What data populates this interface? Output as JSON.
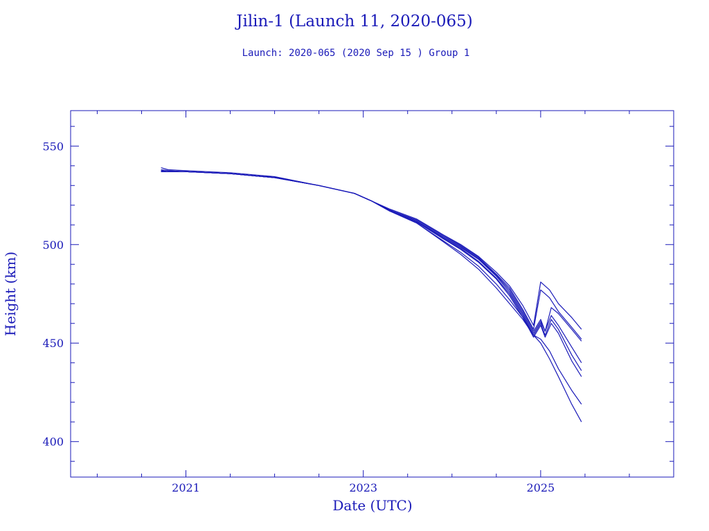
{
  "chart_data": {
    "type": "line",
    "title": "Jilin-1 (Launch 11, 2020-065)",
    "subtitle": "Launch: 2020-065  (2020 Sep 15 )  Group 1",
    "xlabel": "Date (UTC)",
    "ylabel": "Height (km)",
    "xlim": [
      2019.7,
      2026.5
    ],
    "ylim": [
      382,
      568
    ],
    "x_ticks": [
      2021,
      2023,
      2025
    ],
    "x_tick_labels": [
      "2021",
      "2023",
      "2025"
    ],
    "y_ticks": [
      400,
      450,
      500,
      550
    ],
    "y_tick_labels": [
      "400",
      "450",
      "500",
      "550"
    ],
    "grid": false,
    "color": "#1a1ab8",
    "series": [
      {
        "x": [
          2020.72,
          2020.8,
          2021.0,
          2021.5,
          2022.0,
          2022.5,
          2022.9,
          2023.1,
          2023.3,
          2023.6,
          2023.9,
          2024.1,
          2024.3,
          2024.5,
          2024.65,
          2024.8,
          2024.92,
          2025.0,
          2025.1,
          2025.2,
          2025.35,
          2025.46
        ],
        "values": [
          539,
          538,
          537.5,
          536.5,
          534.5,
          530,
          526,
          522,
          518,
          513,
          505,
          500,
          494,
          486,
          479,
          469,
          459,
          481,
          477,
          470,
          463,
          457
        ]
      },
      {
        "x": [
          2020.72,
          2020.8,
          2021.0,
          2021.5,
          2022.0,
          2022.5,
          2022.9,
          2023.1,
          2023.3,
          2023.6,
          2023.9,
          2024.1,
          2024.3,
          2024.5,
          2024.65,
          2024.8,
          2024.92,
          2025.0,
          2025.1,
          2025.2,
          2025.35,
          2025.46
        ],
        "values": [
          538,
          537.5,
          537,
          536,
          534,
          530,
          526,
          522,
          517.5,
          512.5,
          504.5,
          499.5,
          493.5,
          485,
          478,
          467,
          457,
          477,
          473,
          466,
          458,
          452
        ]
      },
      {
        "x": [
          2020.72,
          2020.8,
          2021.0,
          2021.5,
          2022.0,
          2022.5,
          2022.9,
          2023.1,
          2023.3,
          2023.6,
          2023.9,
          2024.1,
          2024.3,
          2024.5,
          2024.65,
          2024.8,
          2024.92,
          2025.0,
          2025.05,
          2025.12,
          2025.2,
          2025.35,
          2025.46
        ],
        "values": [
          537.5,
          537,
          537,
          536,
          534,
          530,
          526,
          522,
          517.5,
          512,
          504,
          499,
          493,
          484.5,
          477,
          466,
          456,
          462,
          456,
          468,
          465,
          457,
          451
        ]
      },
      {
        "x": [
          2020.72,
          2020.8,
          2021.0,
          2021.5,
          2022.0,
          2022.5,
          2022.9,
          2023.1,
          2023.3,
          2023.6,
          2023.9,
          2024.1,
          2024.3,
          2024.5,
          2024.65,
          2024.8,
          2024.92,
          2025.0,
          2025.05,
          2025.12,
          2025.2,
          2025.35,
          2025.46
        ],
        "values": [
          537.5,
          537,
          537,
          536,
          534,
          530,
          526,
          522,
          517.5,
          512,
          503.5,
          498.5,
          492.5,
          484,
          476,
          465,
          455,
          461,
          456,
          464,
          459,
          448,
          440
        ]
      },
      {
        "x": [
          2020.72,
          2020.8,
          2021.0,
          2021.5,
          2022.0,
          2022.5,
          2022.9,
          2023.1,
          2023.3,
          2023.6,
          2023.9,
          2024.1,
          2024.3,
          2024.5,
          2024.65,
          2024.8,
          2024.92,
          2025.0,
          2025.05,
          2025.12,
          2025.2,
          2025.35,
          2025.46
        ],
        "values": [
          537,
          537,
          537,
          536,
          534,
          530,
          526,
          522,
          517,
          511.5,
          503,
          498,
          491.5,
          483,
          475,
          464,
          454,
          460,
          454,
          462,
          457,
          444,
          436
        ]
      },
      {
        "x": [
          2020.72,
          2020.8,
          2021.0,
          2021.5,
          2022.0,
          2022.5,
          2022.9,
          2023.1,
          2023.3,
          2023.6,
          2023.9,
          2024.1,
          2024.3,
          2024.5,
          2024.65,
          2024.8,
          2024.92,
          2025.0,
          2025.05,
          2025.12,
          2025.2,
          2025.35,
          2025.46
        ],
        "values": [
          537,
          537,
          537,
          536,
          534,
          530,
          526,
          522,
          517,
          511.5,
          503,
          497.5,
          491,
          482.5,
          474,
          463,
          453,
          459,
          453,
          460,
          455,
          441,
          433
        ]
      },
      {
        "x": [
          2020.72,
          2020.8,
          2021.0,
          2021.5,
          2022.0,
          2022.5,
          2022.9,
          2023.1,
          2023.3,
          2023.6,
          2023.9,
          2024.1,
          2024.3,
          2024.5,
          2024.65,
          2024.8,
          2024.92,
          2025.0,
          2025.1,
          2025.2,
          2025.35,
          2025.46
        ],
        "values": [
          537,
          537,
          537,
          536,
          534,
          530,
          526,
          522,
          517,
          511,
          502,
          496,
          489,
          480,
          472,
          463,
          454,
          452,
          446,
          437,
          426,
          419
        ]
      },
      {
        "x": [
          2020.72,
          2020.8,
          2021.0,
          2021.5,
          2022.0,
          2022.5,
          2022.9,
          2023.1,
          2023.3,
          2023.6,
          2023.9,
          2024.1,
          2024.3,
          2024.5,
          2024.65,
          2024.8,
          2024.92,
          2025.0,
          2025.1,
          2025.2,
          2025.35,
          2025.46
        ],
        "values": [
          537,
          537,
          537,
          536,
          534,
          530,
          526,
          522,
          517,
          511,
          501.5,
          495,
          487.5,
          478,
          470,
          462,
          454,
          450,
          442,
          433,
          419,
          410
        ]
      }
    ]
  }
}
